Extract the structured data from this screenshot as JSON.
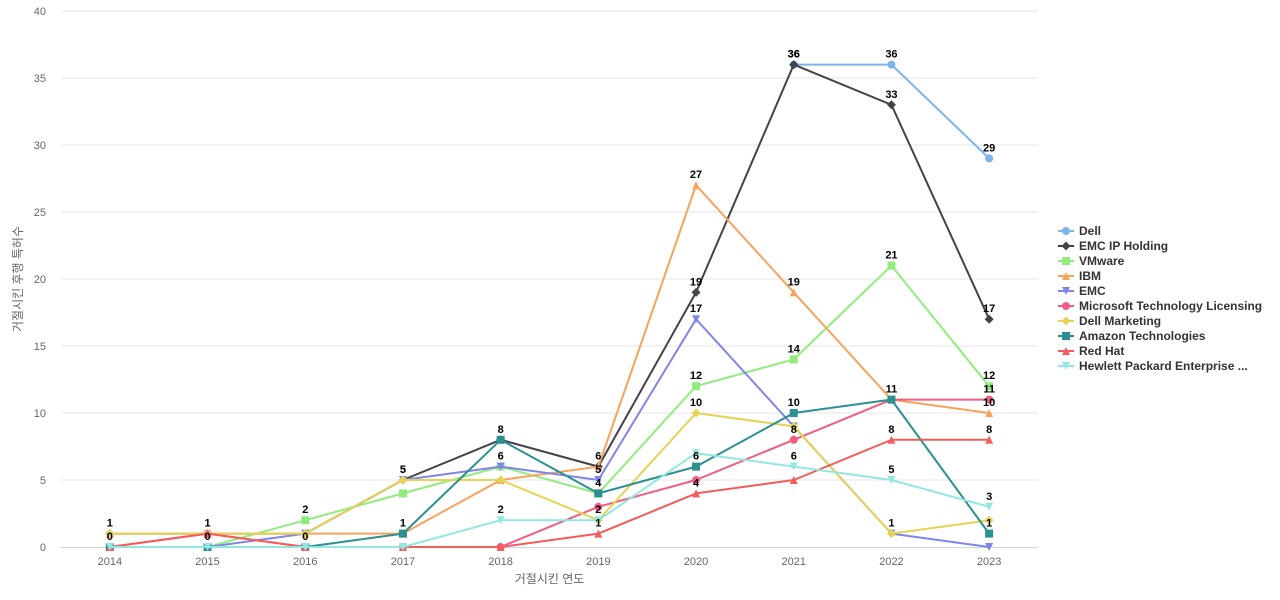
{
  "chart_data": {
    "type": "line",
    "title": "",
    "xlabel": "거절시킨 연도",
    "ylabel": "거절시킨 후행 특허수",
    "x": [
      "2014",
      "2015",
      "2016",
      "2017",
      "2018",
      "2019",
      "2020",
      "2021",
      "2022",
      "2023"
    ],
    "ylim": [
      0,
      40
    ],
    "yticks": [
      0,
      5,
      10,
      15,
      20,
      25,
      30,
      35,
      40
    ],
    "grid": true,
    "legend_position": "right",
    "series": [
      {
        "name": "Dell",
        "color": "#7cb5ec",
        "marker": "circle",
        "values": [
          null,
          null,
          null,
          null,
          null,
          null,
          null,
          36,
          36,
          29
        ]
      },
      {
        "name": "EMC IP Holding",
        "color": "#434348",
        "marker": "diamond",
        "values": [
          1,
          1,
          1,
          5,
          8,
          6,
          19,
          36,
          33,
          17
        ]
      },
      {
        "name": "VMware",
        "color": "#90ed7d",
        "marker": "square",
        "values": [
          0,
          0,
          2,
          4,
          6,
          4,
          12,
          14,
          21,
          12
        ]
      },
      {
        "name": "IBM",
        "color": "#f7a35c",
        "marker": "triangle",
        "values": [
          1,
          1,
          1,
          1,
          5,
          6,
          27,
          19,
          11,
          10
        ]
      },
      {
        "name": "EMC",
        "color": "#8085e9",
        "marker": "triangle-down",
        "values": [
          0,
          0,
          1,
          5,
          6,
          5,
          17,
          9,
          1,
          0
        ]
      },
      {
        "name": "Microsoft Technology Licensing",
        "color": "#f15c80",
        "marker": "circle",
        "values": [
          0,
          1,
          0,
          0,
          0,
          3,
          5,
          8,
          11,
          11
        ]
      },
      {
        "name": "Dell Marketing",
        "color": "#e4d354",
        "marker": "diamond",
        "values": [
          1,
          1,
          1,
          5,
          5,
          2,
          10,
          9,
          1,
          2
        ]
      },
      {
        "name": "Amazon Technologies",
        "color": "#2b908f",
        "marker": "square",
        "values": [
          0,
          0,
          0,
          1,
          8,
          4,
          6,
          10,
          11,
          1
        ]
      },
      {
        "name": "Red Hat",
        "color": "#f45b5b",
        "marker": "triangle",
        "values": [
          0,
          1,
          0,
          0,
          0,
          1,
          4,
          5,
          8,
          8
        ]
      },
      {
        "name": "Hewlett Packard Enterprise ...",
        "color": "#91e8e1",
        "marker": "triangle-down",
        "values": [
          0,
          0,
          0,
          0,
          2,
          2,
          7,
          6,
          5,
          3
        ]
      }
    ],
    "data_labels_shown": [
      {
        "series": 0,
        "points": [
          7,
          8,
          9
        ]
      },
      {
        "series": 1,
        "points": [
          6,
          7,
          8,
          9
        ]
      },
      {
        "series": 2,
        "points": [
          2,
          6,
          7,
          8,
          9
        ]
      },
      {
        "series": 3,
        "points": [
          0,
          1,
          5,
          6,
          7,
          8,
          9
        ]
      },
      {
        "series": 4,
        "points": [
          3,
          4,
          5,
          6
        ]
      },
      {
        "series": 5,
        "points": [
          7,
          9
        ]
      },
      {
        "series": 6,
        "points": [
          3,
          6,
          8
        ]
      },
      {
        "series": 7,
        "points": [
          0,
          1,
          2,
          3,
          4,
          5,
          6,
          7,
          9
        ]
      },
      {
        "series": 8,
        "points": [
          5,
          6,
          8,
          9
        ]
      },
      {
        "series": 9,
        "points": [
          4,
          5,
          7,
          8,
          9
        ]
      }
    ]
  }
}
